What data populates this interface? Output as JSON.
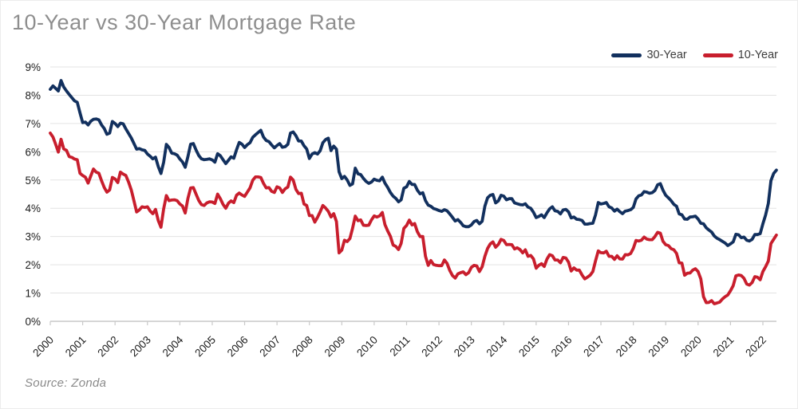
{
  "page": {
    "title": "10-Year vs 30-Year Mortgage Rate",
    "source_note": "Source: Zonda"
  },
  "legend": {
    "items": [
      {
        "label": "30-Year",
        "color": "#12305e"
      },
      {
        "label": "10-Year",
        "color": "#c81e2d"
      }
    ]
  },
  "chart_data": {
    "type": "line",
    "title": "10-Year vs 30-Year Mortgage Rate",
    "x_unit": "monthly, Jan 2000 - Jun 2022",
    "x_tick_labels": [
      "2000",
      "2001",
      "2002",
      "2003",
      "2004",
      "2005",
      "2006",
      "2007",
      "2008",
      "2009",
      "2010",
      "2011",
      "2012",
      "2013",
      "2014",
      "2015",
      "2016",
      "2017",
      "2018",
      "2019",
      "2020",
      "2021",
      "2022"
    ],
    "y_tick_labels": [
      "0%",
      "1%",
      "2%",
      "3%",
      "4%",
      "5%",
      "6%",
      "7%",
      "8%",
      "9%"
    ],
    "ylim": [
      0,
      9
    ],
    "grid": "horizontal",
    "legend_position": "top-right",
    "colors": {
      "grid": "#e3e3e3",
      "axis": "#c9c9c9",
      "tick": "#c9c9c9"
    },
    "series": [
      {
        "name": "30-Year",
        "color": "#12305e",
        "values": [
          8.21,
          8.33,
          8.24,
          8.15,
          8.52,
          8.29,
          8.15,
          8.03,
          7.91,
          7.8,
          7.75,
          7.38,
          7.03,
          7.05,
          6.95,
          7.08,
          7.15,
          7.16,
          7.13,
          6.95,
          6.82,
          6.62,
          6.66,
          7.07,
          7.0,
          6.89,
          7.01,
          6.99,
          6.81,
          6.65,
          6.49,
          6.29,
          6.09,
          6.11,
          6.07,
          6.05,
          5.92,
          5.84,
          5.75,
          5.81,
          5.48,
          5.23,
          5.63,
          6.26,
          6.15,
          5.95,
          5.93,
          5.88,
          5.74,
          5.64,
          5.45,
          5.83,
          6.27,
          6.29,
          6.06,
          5.87,
          5.75,
          5.72,
          5.73,
          5.75,
          5.71,
          5.63,
          5.93,
          5.86,
          5.72,
          5.58,
          5.7,
          5.82,
          5.77,
          6.07,
          6.33,
          6.27,
          6.15,
          6.25,
          6.32,
          6.51,
          6.6,
          6.68,
          6.76,
          6.52,
          6.4,
          6.36,
          6.24,
          6.14,
          6.22,
          6.29,
          6.16,
          6.18,
          6.26,
          6.66,
          6.7,
          6.57,
          6.38,
          6.38,
          6.21,
          6.1,
          5.76,
          5.92,
          5.97,
          5.92,
          6.04,
          6.32,
          6.43,
          6.48,
          6.04,
          6.2,
          6.09,
          5.29,
          5.05,
          5.13,
          5.0,
          4.81,
          4.86,
          5.42,
          5.22,
          5.19,
          5.06,
          4.95,
          4.88,
          4.93,
          5.03,
          4.99,
          4.97,
          5.1,
          4.89,
          4.74,
          4.56,
          4.43,
          4.35,
          4.23,
          4.3,
          4.71,
          4.76,
          4.95,
          4.84,
          4.84,
          4.64,
          4.51,
          4.55,
          4.27,
          4.11,
          4.07,
          3.99,
          3.96,
          3.92,
          3.89,
          3.95,
          3.91,
          3.8,
          3.68,
          3.55,
          3.6,
          3.5,
          3.38,
          3.35,
          3.35,
          3.41,
          3.53,
          3.57,
          3.45,
          3.54,
          4.07,
          4.37,
          4.46,
          4.49,
          4.19,
          4.26,
          4.46,
          4.43,
          4.3,
          4.34,
          4.34,
          4.19,
          4.16,
          4.13,
          4.12,
          4.16,
          4.04,
          4.0,
          3.86,
          3.67,
          3.71,
          3.77,
          3.67,
          3.84,
          3.98,
          4.05,
          3.91,
          3.89,
          3.8,
          3.94,
          3.96,
          3.87,
          3.66,
          3.69,
          3.61,
          3.6,
          3.57,
          3.44,
          3.44,
          3.46,
          3.47,
          3.77,
          4.2,
          4.15,
          4.17,
          4.2,
          4.05,
          4.01,
          3.9,
          3.97,
          3.88,
          3.81,
          3.9,
          3.92,
          3.95,
          4.03,
          4.33,
          4.44,
          4.47,
          4.59,
          4.57,
          4.53,
          4.55,
          4.63,
          4.83,
          4.87,
          4.64,
          4.46,
          4.37,
          4.27,
          4.14,
          4.07,
          3.8,
          3.77,
          3.62,
          3.61,
          3.69,
          3.7,
          3.72,
          3.62,
          3.47,
          3.45,
          3.31,
          3.23,
          3.16,
          3.02,
          2.94,
          2.89,
          2.83,
          2.77,
          2.68,
          2.74,
          2.81,
          3.08,
          3.06,
          2.96,
          2.98,
          2.87,
          2.84,
          2.9,
          3.07,
          3.07,
          3.1,
          3.45,
          3.76,
          4.17,
          4.98,
          5.23,
          5.35
        ]
      },
      {
        "name": "10-Year",
        "color": "#c81e2d",
        "values": [
          6.66,
          6.52,
          6.26,
          5.99,
          6.44,
          6.1,
          6.05,
          5.83,
          5.8,
          5.74,
          5.72,
          5.24,
          5.16,
          5.1,
          4.89,
          5.14,
          5.39,
          5.28,
          5.24,
          4.97,
          4.73,
          4.57,
          4.65,
          5.09,
          5.04,
          4.91,
          5.28,
          5.21,
          5.16,
          4.93,
          4.65,
          4.26,
          3.87,
          3.94,
          4.05,
          4.03,
          4.05,
          3.9,
          3.81,
          3.96,
          3.57,
          3.33,
          3.98,
          4.45,
          4.27,
          4.29,
          4.3,
          4.27,
          4.15,
          4.08,
          3.83,
          4.35,
          4.72,
          4.73,
          4.5,
          4.28,
          4.13,
          4.1,
          4.19,
          4.23,
          4.22,
          4.17,
          4.5,
          4.34,
          4.14,
          4.0,
          4.18,
          4.26,
          4.2,
          4.46,
          4.54,
          4.47,
          4.42,
          4.57,
          4.72,
          4.99,
          5.11,
          5.11,
          5.09,
          4.88,
          4.72,
          4.73,
          4.6,
          4.56,
          4.76,
          4.72,
          4.56,
          4.69,
          4.75,
          5.1,
          5.0,
          4.67,
          4.52,
          4.53,
          4.15,
          4.1,
          3.74,
          3.74,
          3.51,
          3.68,
          3.88,
          4.1,
          4.01,
          3.89,
          3.69,
          3.81,
          3.53,
          2.42,
          2.52,
          2.87,
          2.82,
          2.93,
          3.29,
          3.72,
          3.56,
          3.59,
          3.4,
          3.39,
          3.4,
          3.59,
          3.73,
          3.69,
          3.73,
          3.85,
          3.42,
          3.2,
          3.01,
          2.7,
          2.65,
          2.54,
          2.76,
          3.29,
          3.39,
          3.58,
          3.41,
          3.46,
          3.17,
          3.0,
          3.0,
          2.3,
          1.98,
          2.15,
          2.01,
          1.98,
          1.97,
          1.97,
          2.17,
          2.05,
          1.8,
          1.62,
          1.53,
          1.68,
          1.72,
          1.75,
          1.65,
          1.72,
          1.91,
          1.98,
          1.96,
          1.76,
          1.93,
          2.3,
          2.58,
          2.74,
          2.81,
          2.62,
          2.72,
          2.9,
          2.86,
          2.71,
          2.72,
          2.71,
          2.56,
          2.6,
          2.54,
          2.42,
          2.53,
          2.3,
          2.33,
          2.21,
          1.88,
          1.98,
          2.04,
          1.94,
          2.2,
          2.36,
          2.32,
          2.17,
          2.17,
          2.07,
          2.26,
          2.24,
          2.09,
          1.78,
          1.89,
          1.81,
          1.81,
          1.64,
          1.5,
          1.56,
          1.63,
          1.76,
          2.14,
          2.49,
          2.43,
          2.42,
          2.48,
          2.3,
          2.3,
          2.19,
          2.32,
          2.21,
          2.2,
          2.36,
          2.35,
          2.4,
          2.58,
          2.86,
          2.84,
          2.87,
          2.98,
          2.91,
          2.89,
          2.89,
          3.0,
          3.15,
          3.12,
          2.83,
          2.71,
          2.68,
          2.57,
          2.53,
          2.4,
          2.07,
          2.06,
          1.63,
          1.7,
          1.71,
          1.81,
          1.86,
          1.76,
          1.5,
          0.87,
          0.66,
          0.67,
          0.73,
          0.62,
          0.65,
          0.68,
          0.79,
          0.87,
          0.93,
          1.08,
          1.26,
          1.61,
          1.64,
          1.62,
          1.52,
          1.32,
          1.28,
          1.37,
          1.58,
          1.56,
          1.47,
          1.76,
          1.93,
          2.13,
          2.75,
          2.9,
          3.05
        ]
      }
    ]
  }
}
